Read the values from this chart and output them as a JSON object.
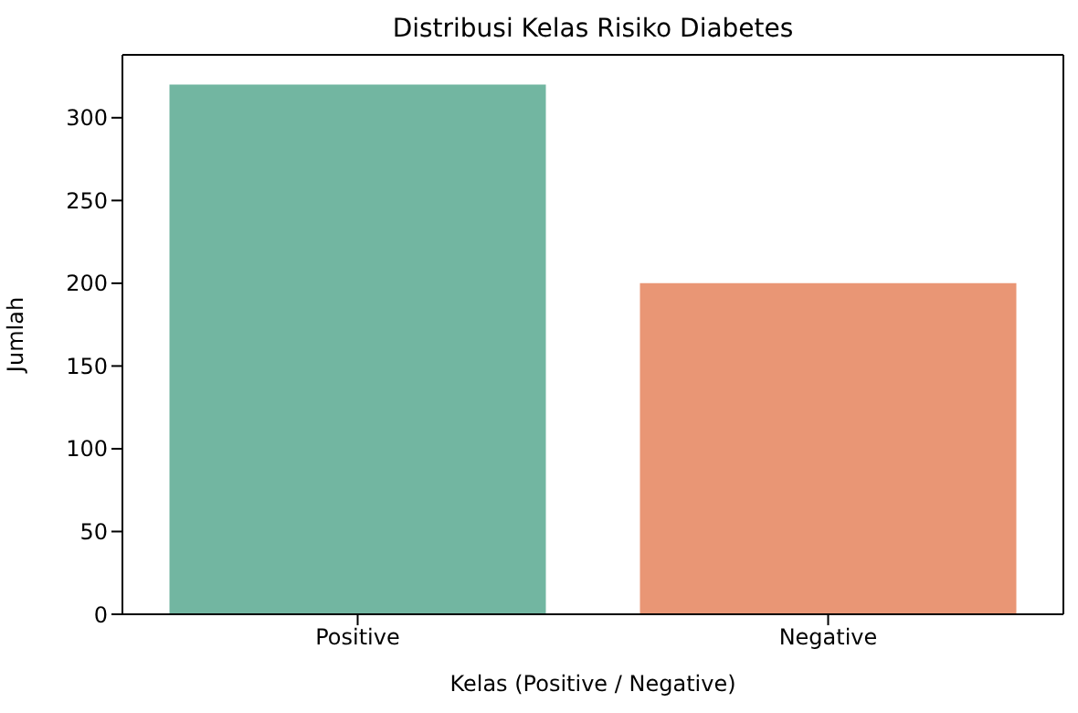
{
  "chart_data": {
    "type": "bar",
    "title": "Distribusi Kelas Risiko Diabetes",
    "xlabel": "Kelas (Positive / Negative)",
    "ylabel": "Jumlah",
    "categories": [
      "Positive",
      "Negative"
    ],
    "values": [
      320,
      200
    ],
    "colors": [
      "#72b6a1",
      "#e99675"
    ],
    "ylim": [
      0,
      338
    ],
    "yticks": [
      0,
      50,
      100,
      150,
      200,
      250,
      300
    ],
    "grid": false
  }
}
